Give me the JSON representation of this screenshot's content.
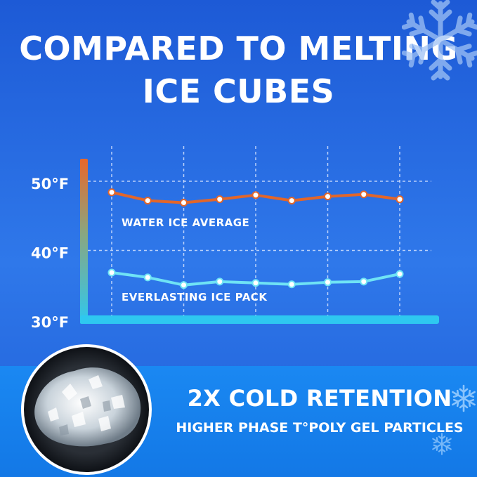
{
  "header": {
    "title_line1": "COMPARED TO MELTING",
    "title_line2": "ICE CUBES"
  },
  "chart_data": {
    "type": "line",
    "title": "",
    "xlabel": "",
    "ylabel": "",
    "ylim": [
      30,
      50
    ],
    "yticks": [
      "50°F",
      "40°F",
      "30°F"
    ],
    "ytick_values": [
      50,
      40,
      30
    ],
    "grid": true,
    "x": [
      1,
      2,
      3,
      4,
      5,
      6,
      7,
      8,
      9
    ],
    "series": [
      {
        "name": "WATER ICE AVERAGE",
        "color": "#e2662a",
        "values": [
          48.4,
          47.2,
          46.9,
          47.4,
          48.0,
          47.2,
          47.8,
          48.1,
          47.4
        ]
      },
      {
        "name": "EVERLASTING ICE PACK",
        "color": "#6fe3f5",
        "values": [
          36.8,
          36.1,
          35.0,
          35.5,
          35.3,
          35.1,
          35.4,
          35.5,
          36.6
        ]
      }
    ]
  },
  "banner": {
    "line1": "2X COLD RETENTION",
    "line2": "HIGHER PHASE T°POLY GEL PARTICLES"
  },
  "colors": {
    "background": "#2a6fe4",
    "axis_top": "#e8672a",
    "axis_bottom": "#2ec8f0",
    "band": "#1782ee"
  },
  "icons": [
    "snowflake-icon",
    "ice-photo"
  ]
}
